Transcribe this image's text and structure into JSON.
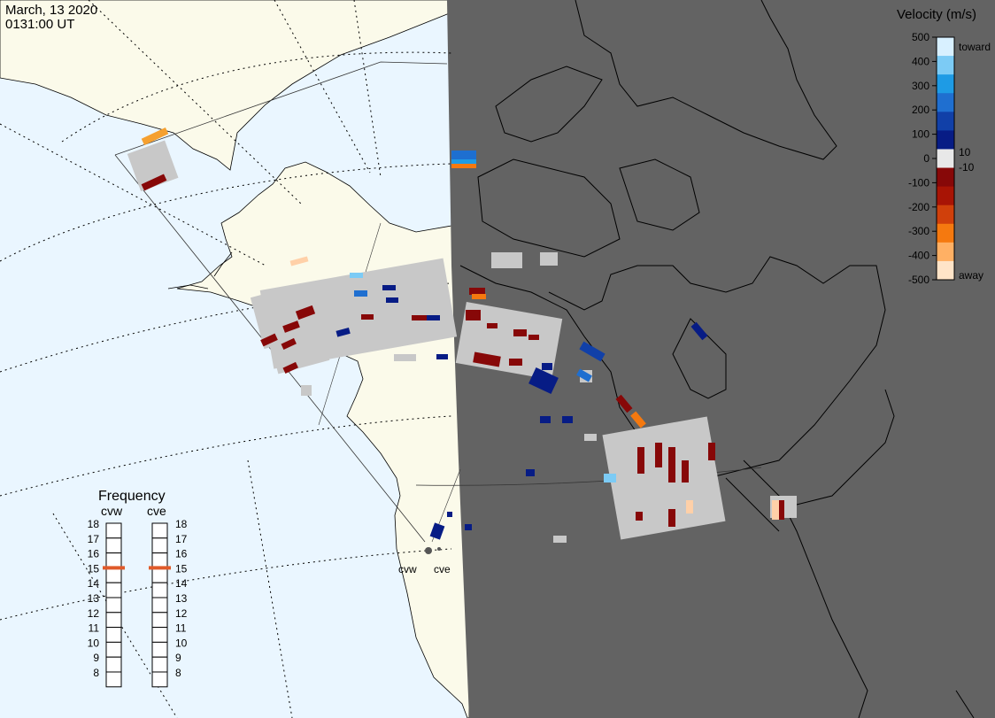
{
  "header": {
    "date": "March, 13 2020",
    "time": "0131:00 UT"
  },
  "colors": {
    "ocean": "#eaf6ff",
    "land": "#fbfaea",
    "night": "#636363",
    "ground_scatter": "#c8c8c8"
  },
  "velocity_scale": {
    "title": "Velocity (m/s)",
    "ticks": [
      "500",
      "400",
      "300",
      "200",
      "100",
      "0",
      "-100",
      "-200",
      "-300",
      "-400",
      "-500"
    ],
    "small_ticks": [
      "10",
      "-10"
    ],
    "toward_label": "toward",
    "away_label": "away",
    "colors": [
      "#d8f0ff",
      "#7ccbf5",
      "#1e9be5",
      "#1f6fd0",
      "#1140a8",
      "#071c85",
      "#e8e8e8",
      "#870808",
      "#a81405",
      "#d0400b",
      "#f5790f",
      "#ffb064",
      "#ffe4c8"
    ]
  },
  "frequency": {
    "title": "Frequency",
    "radars": [
      {
        "name": "cvw",
        "selected": "15"
      },
      {
        "name": "cve",
        "selected": "15"
      }
    ],
    "levels": [
      "18",
      "17",
      "16",
      "15",
      "14",
      "13",
      "12",
      "11",
      "10",
      "9",
      "8"
    ],
    "marker_color": "#e05a2a"
  },
  "sites": [
    {
      "label": "cvw"
    },
    {
      "label": "cve"
    }
  ]
}
